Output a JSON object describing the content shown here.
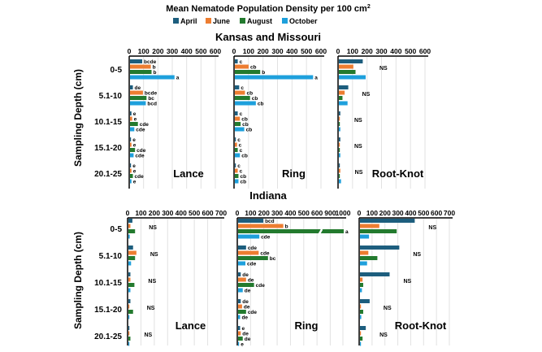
{
  "chart_data": {
    "type": "bar",
    "title": "Mean Nematode Population Density per 100 cm",
    "title_superscript": "2",
    "ylabel": "Sampling Depth (cm)",
    "categories": [
      "0-5",
      "5.1-10",
      "10.1-15",
      "15.1-20",
      "20.1-25"
    ],
    "legend": {
      "placement": "top",
      "entries": [
        "April",
        "June",
        "August",
        "October"
      ]
    },
    "colors": {
      "April": "#1d5e7e",
      "June": "#ed7d31",
      "August": "#237a2e",
      "October": "#1ea0dc"
    },
    "grid": true,
    "regions": [
      {
        "name": "Kansas and Missouri",
        "panels": [
          {
            "name": "Lance",
            "xlim": [
              0,
              600
            ],
            "ticks": [
              0,
              100,
              200,
              300,
              400,
              500,
              600
            ],
            "values": [
              [
                85,
                145,
                150,
                310
              ],
              [
                20,
                90,
                115,
                110
              ],
              [
                10,
                15,
                55,
                30
              ],
              [
                5,
                10,
                35,
                25
              ],
              [
                5,
                10,
                20,
                10
              ]
            ],
            "labels": [
              [
                "bcde",
                "b",
                "b",
                "a"
              ],
              [
                "de",
                "bcde",
                "bc",
                "bcd"
              ],
              [
                "e",
                "e",
                "cde",
                "cde"
              ],
              [
                "e",
                "e",
                "cde",
                "cde"
              ],
              [
                "e",
                "e",
                "cde",
                "e"
              ]
            ]
          },
          {
            "name": "Ring",
            "xlim": [
              0,
              600
            ],
            "ticks": [
              0,
              100,
              200,
              300,
              400,
              500,
              600
            ],
            "values": [
              [
                20,
                95,
                175,
                540
              ],
              [
                30,
                70,
                105,
                145
              ],
              [
                20,
                35,
                40,
                65
              ],
              [
                5,
                15,
                20,
                35
              ],
              [
                5,
                20,
                25,
                25
              ]
            ],
            "labels": [
              [
                "c",
                "cb",
                "b",
                "a"
              ],
              [
                "c",
                "cb",
                "cb",
                "cb"
              ],
              [
                "c",
                "cb",
                "cb",
                "cb"
              ],
              [
                "c",
                "c",
                "c",
                "cb"
              ],
              [
                "c",
                "c",
                "cb",
                "cb"
              ]
            ]
          },
          {
            "name": "Root-Knot",
            "xlim": [
              0,
              600
            ],
            "ticks": [
              0,
              100,
              200,
              300,
              400,
              500,
              600
            ],
            "values": [
              [
                165,
                100,
                115,
                185
              ],
              [
                65,
                40,
                25,
                60
              ],
              [
                10,
                5,
                5,
                10
              ],
              [
                10,
                2,
                5,
                10
              ],
              [
                2,
                10,
                5,
                15
              ]
            ],
            "group_labels": [
              "NS",
              "NS",
              "NS",
              "NS",
              "NS"
            ]
          }
        ]
      },
      {
        "name": "Indiana",
        "panels": [
          {
            "name": "Lance",
            "xlim": [
              0,
              700
            ],
            "ticks": [
              0,
              100,
              200,
              300,
              400,
              500,
              600,
              700
            ],
            "values": [
              [
                30,
                15,
                50,
                10
              ],
              [
                35,
                60,
                50,
                20
              ],
              [
                15,
                15,
                45,
                15
              ],
              [
                15,
                3,
                35,
                5
              ],
              [
                3,
                2,
                15,
                3
              ]
            ],
            "group_labels": [
              "NS",
              "NS",
              "NS",
              "NS",
              "NS"
            ]
          },
          {
            "name": "Ring",
            "xlim": [
              0,
              1000
            ],
            "axis_break": [
              600,
              900
            ],
            "ticks": [
              0,
              100,
              200,
              300,
              400,
              500,
              600,
              900,
              1000
            ],
            "values": [
              [
                190,
                340,
                1000,
                160
              ],
              [
                60,
                155,
                225,
                55
              ],
              [
                20,
                60,
                120,
                35
              ],
              [
                20,
                30,
                60,
                15
              ],
              [
                15,
                20,
                35,
                2
              ]
            ],
            "labels": [
              [
                "bcd",
                "b",
                "a",
                "cde"
              ],
              [
                "cde",
                "cde",
                "bc",
                "cde"
              ],
              [
                "de",
                "de",
                "cde",
                "de"
              ],
              [
                "de",
                "de",
                "cde",
                "de"
              ],
              [
                "e",
                "de",
                "de",
                "e"
              ]
            ]
          },
          {
            "name": "Root-Knot",
            "xlim": [
              0,
              700
            ],
            "ticks": [
              0,
              100,
              200,
              300,
              400,
              500,
              600,
              700
            ],
            "values": [
              [
                425,
                150,
                285,
                70
              ],
              [
                305,
                65,
                135,
                55
              ],
              [
                230,
                20,
                25,
                15
              ],
              [
                75,
                5,
                25,
                10
              ],
              [
                45,
                5,
                20,
                5
              ]
            ],
            "group_labels": [
              "NS",
              "NS",
              "NS",
              "NS",
              "NS"
            ]
          }
        ]
      }
    ]
  }
}
